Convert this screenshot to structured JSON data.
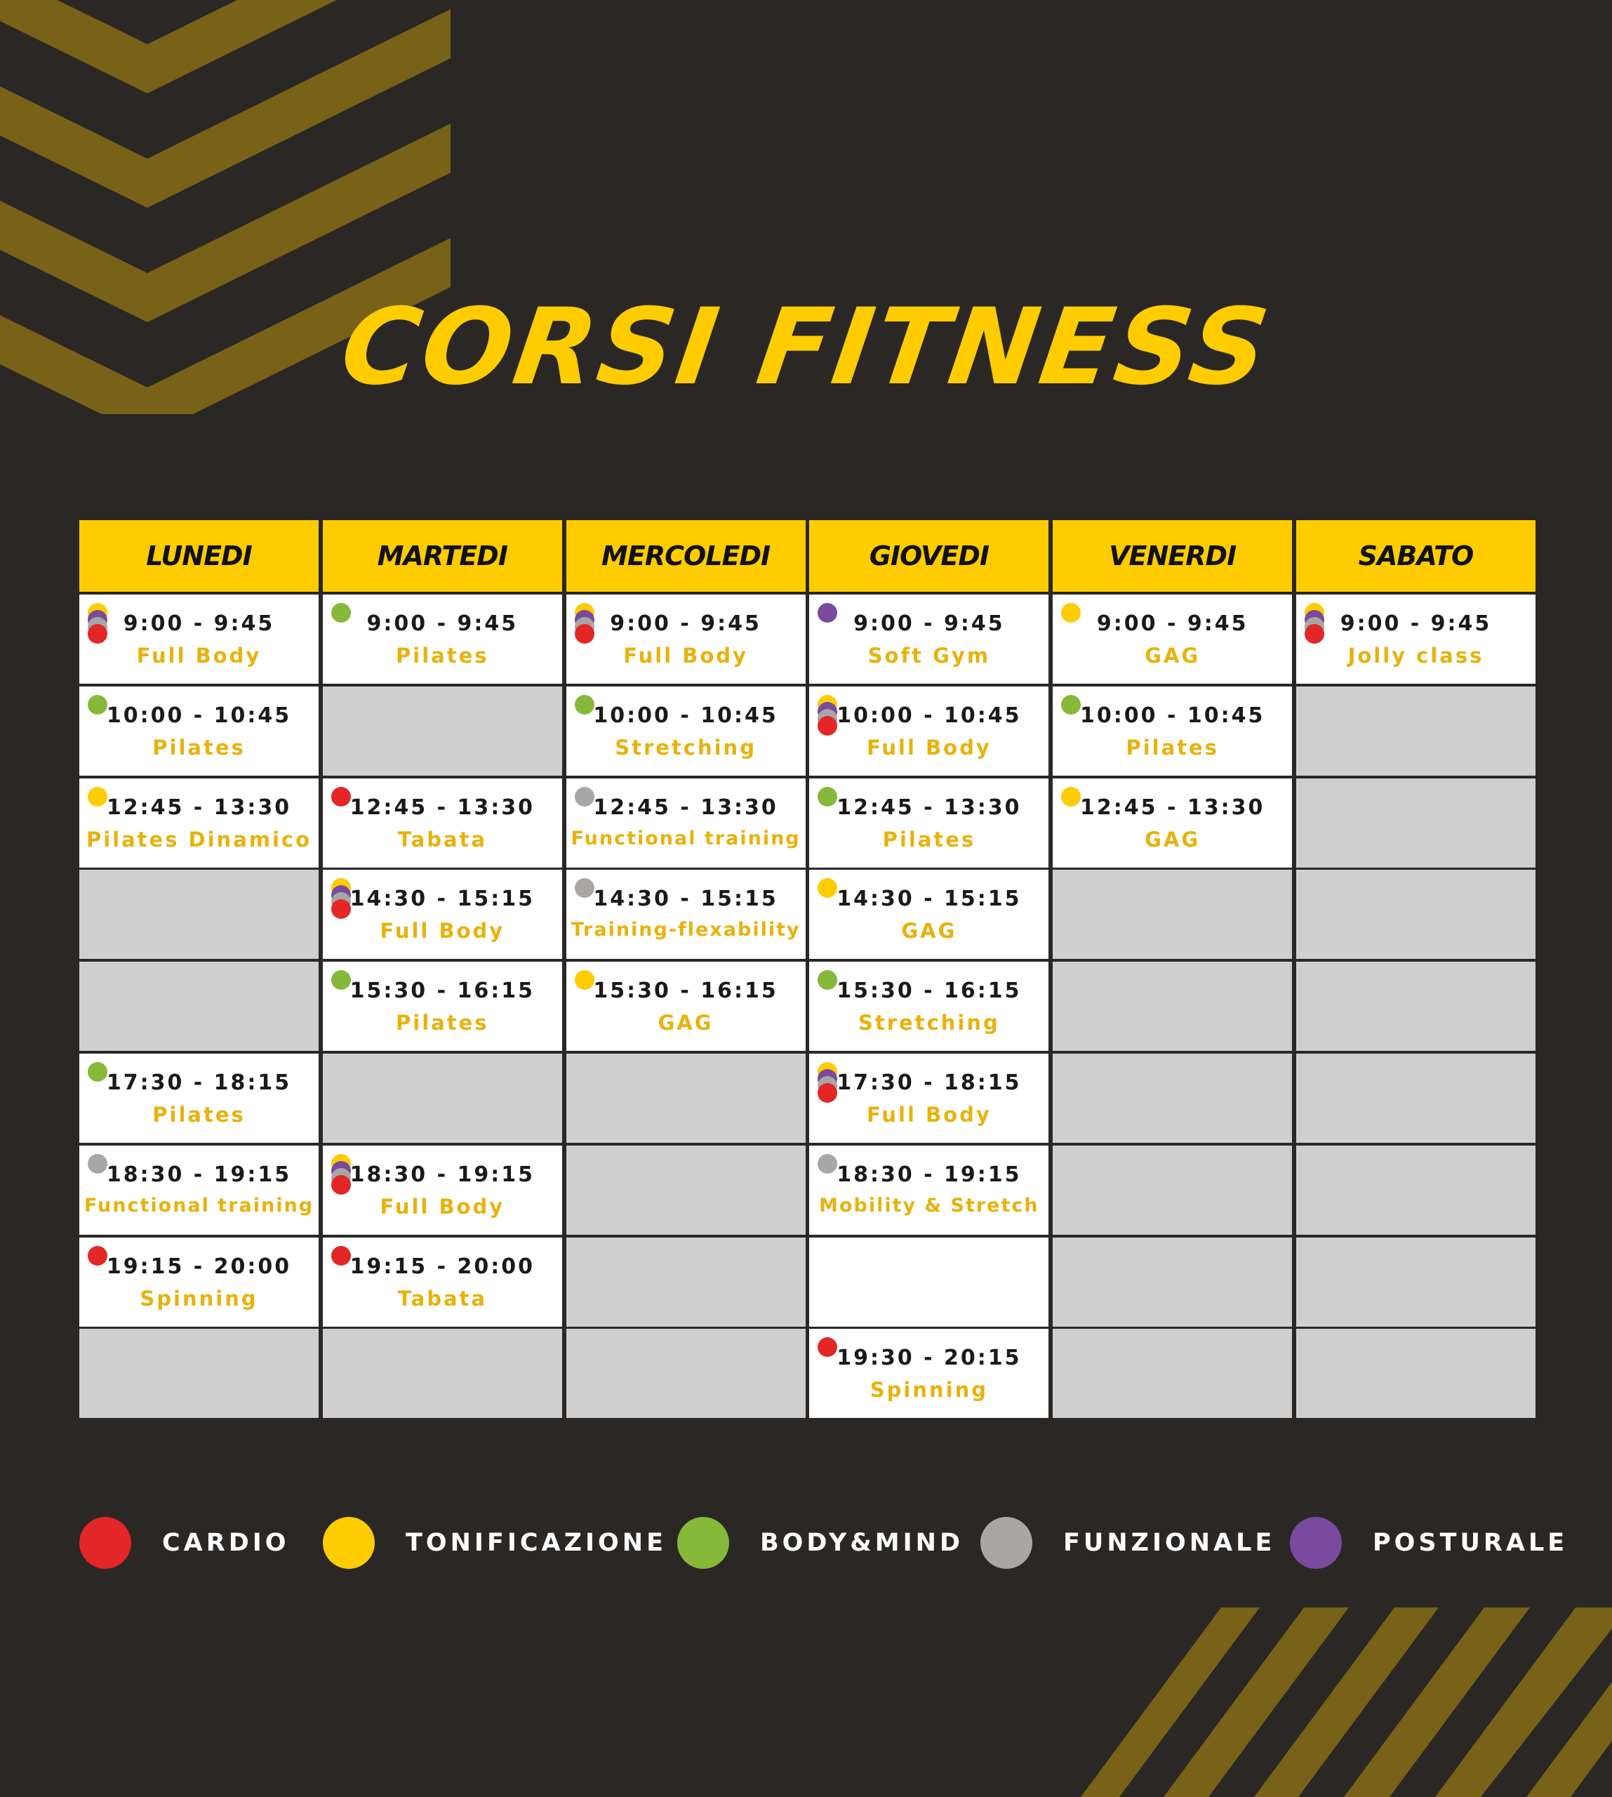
{
  "title": "CORSI FITNESS",
  "colors": {
    "background": "#2a2725",
    "accent": "#ffcc00",
    "class_name": "#e8b20c",
    "empty_cell": "#cfcfcf",
    "deco": "#776218"
  },
  "categories": {
    "cardio": {
      "label": "CARDIO",
      "color": "#e32626"
    },
    "tonificazione": {
      "label": "TONIFICAZIONE",
      "color": "#ffcc00"
    },
    "bodymind": {
      "label": "BODY&MIND",
      "color": "#86b83a"
    },
    "funzionale": {
      "label": "FUNZIONALE",
      "color": "#a9a6a6"
    },
    "posturale": {
      "label": "POSTURALE",
      "color": "#7a4a9e"
    }
  },
  "legend_order": [
    "cardio",
    "tonificazione",
    "bodymind",
    "funzionale",
    "posturale"
  ],
  "days": [
    {
      "name": "LUNEDI",
      "slots": [
        {
          "time": "9:00 - 9:45",
          "name": "Full Body",
          "cats": [
            "tonificazione",
            "posturale",
            "funzionale",
            "cardio"
          ]
        },
        {
          "time": "10:00 - 10:45",
          "name": "Pilates",
          "cats": [
            "bodymind"
          ]
        },
        {
          "time": "12:45 - 13:30",
          "name": "Pilates Dinamico",
          "cats": [
            "tonificazione"
          ]
        },
        null,
        null,
        {
          "time": "17:30 - 18:15",
          "name": "Pilates",
          "cats": [
            "bodymind"
          ]
        },
        {
          "time": "18:30 - 19:15",
          "name": "Functional training",
          "cats": [
            "funzionale"
          ]
        },
        {
          "time": "19:15 - 20:00",
          "name": "Spinning",
          "cats": [
            "cardio"
          ]
        },
        null
      ]
    },
    {
      "name": "MARTEDI",
      "slots": [
        {
          "time": "9:00 - 9:45",
          "name": "Pilates",
          "cats": [
            "bodymind"
          ]
        },
        null,
        {
          "time": "12:45 - 13:30",
          "name": "Tabata",
          "cats": [
            "cardio"
          ]
        },
        {
          "time": "14:30 - 15:15",
          "name": "Full Body",
          "cats": [
            "tonificazione",
            "posturale",
            "funzionale",
            "cardio"
          ]
        },
        {
          "time": "15:30 - 16:15",
          "name": "Pilates",
          "cats": [
            "bodymind"
          ]
        },
        null,
        {
          "time": "18:30 - 19:15",
          "name": "Full Body",
          "cats": [
            "tonificazione",
            "posturale",
            "funzionale",
            "cardio"
          ]
        },
        {
          "time": "19:15 - 20:00",
          "name": "Tabata",
          "cats": [
            "cardio"
          ]
        },
        null
      ]
    },
    {
      "name": "MERCOLEDI",
      "slots": [
        {
          "time": "9:00 - 9:45",
          "name": "Full Body",
          "cats": [
            "tonificazione",
            "posturale",
            "funzionale",
            "cardio"
          ]
        },
        {
          "time": "10:00 - 10:45",
          "name": "Stretching",
          "cats": [
            "bodymind"
          ]
        },
        {
          "time": "12:45 - 13:30",
          "name": "Functional training",
          "cats": [
            "funzionale"
          ]
        },
        {
          "time": "14:30 - 15:15",
          "name": "Training-flexability",
          "cats": [
            "funzionale"
          ]
        },
        {
          "time": "15:30 - 16:15",
          "name": "GAG",
          "cats": [
            "tonificazione"
          ]
        },
        null,
        null,
        null,
        null
      ]
    },
    {
      "name": "GIOVEDI",
      "slots": [
        {
          "time": "9:00 - 9:45",
          "name": "Soft Gym",
          "cats": [
            "posturale"
          ]
        },
        {
          "time": "10:00 - 10:45",
          "name": "Full Body",
          "cats": [
            "tonificazione",
            "posturale",
            "funzionale",
            "cardio"
          ]
        },
        {
          "time": "12:45 - 13:30",
          "name": "Pilates",
          "cats": [
            "bodymind"
          ]
        },
        {
          "time": "14:30 - 15:15",
          "name": "GAG",
          "cats": [
            "tonificazione"
          ]
        },
        {
          "time": "15:30 - 16:15",
          "name": "Stretching",
          "cats": [
            "bodymind"
          ]
        },
        {
          "time": "17:30 - 18:15",
          "name": "Full Body",
          "cats": [
            "tonificazione",
            "posturale",
            "funzionale",
            "cardio"
          ]
        },
        {
          "time": "18:30 - 19:15",
          "name": "Mobility & Stretch",
          "cats": [
            "funzionale"
          ]
        },
        "blank",
        {
          "time": "19:30 - 20:15",
          "name": "Spinning",
          "cats": [
            "cardio"
          ]
        }
      ]
    },
    {
      "name": "VENERDI",
      "slots": [
        {
          "time": "9:00 - 9:45",
          "name": "GAG",
          "cats": [
            "tonificazione"
          ]
        },
        {
          "time": "10:00 - 10:45",
          "name": "Pilates",
          "cats": [
            "bodymind"
          ]
        },
        {
          "time": "12:45 - 13:30",
          "name": "GAG",
          "cats": [
            "tonificazione"
          ]
        },
        null,
        null,
        null,
        null,
        null,
        null
      ]
    },
    {
      "name": "SABATO",
      "slots": [
        {
          "time": "9:00 - 9:45",
          "name": "Jolly class",
          "cats": [
            "tonificazione",
            "posturale",
            "funzionale",
            "cardio"
          ]
        },
        null,
        null,
        null,
        null,
        null,
        null,
        null,
        null
      ]
    }
  ]
}
